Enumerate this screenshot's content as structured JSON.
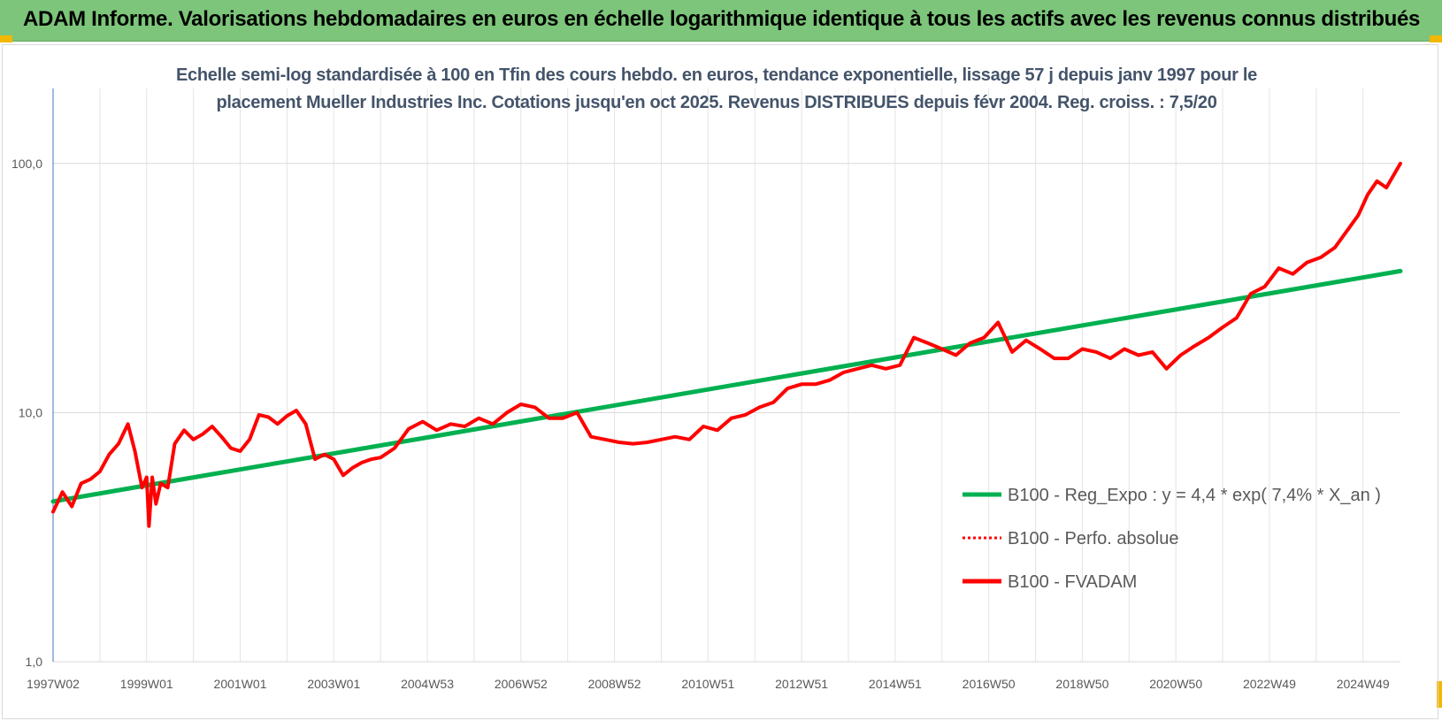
{
  "banner": {
    "title": "ADAM Informe. Valorisations hebdomadaires en euros en échelle logarithmique identique à tous les actifs avec les revenus connus distribués"
  },
  "chart_data": {
    "type": "line",
    "title_line1": "Echelle semi-log standardisée à 100 en Tfin des cours hebdo. en euros, tendance exponentielle, lissage 57 j depuis janv 1997 pour le",
    "title_line2": "placement Mueller Industries Inc. Cotations jusqu'en oct 2025. Revenus DISTRIBUES depuis févr 2004. Reg. croiss. : 7,5/20",
    "y_scale": "log",
    "ylim": [
      1,
      200
    ],
    "xlim": [
      1997.0,
      2025.8
    ],
    "y_ticks": [
      "1,0",
      "10,0",
      "100,0"
    ],
    "y_tick_values": [
      1,
      10,
      100
    ],
    "x_ticks": [
      "1997W02",
      "1999W01",
      "2001W01",
      "2003W01",
      "2004W53",
      "2006W52",
      "2008W52",
      "2010W51",
      "2012W51",
      "2014W51",
      "2016W50",
      "2018W50",
      "2020W50",
      "2022W49",
      "2024W49"
    ],
    "x_tick_years": [
      1997.0,
      1999.0,
      2001.0,
      2003.0,
      2005.0,
      2007.0,
      2009.0,
      2011.0,
      2013.0,
      2015.0,
      2017.0,
      2019.0,
      2021.0,
      2023.0,
      2025.0
    ],
    "grid": true,
    "legend_position": "right",
    "series": [
      {
        "name": "B100 - Reg_Expo : y = 4,4 * exp( 7,4% *  X_an )",
        "color": "#00b050",
        "style": "solid",
        "x": [
          1997.0,
          2025.8
        ],
        "y": [
          4.4,
          37.0
        ]
      },
      {
        "name": "B100 - Perfo. absolue",
        "color": "#ff0000",
        "style": "dotted",
        "x": [],
        "y": []
      },
      {
        "name": "B100 - FVADAM",
        "color": "#ff0000",
        "style": "solid",
        "x": [
          1997.0,
          1997.2,
          1997.4,
          1997.6,
          1997.8,
          1998.0,
          1998.2,
          1998.4,
          1998.6,
          1998.75,
          1998.9,
          1999.0,
          1999.05,
          1999.12,
          1999.2,
          1999.3,
          1999.45,
          1999.6,
          1999.8,
          2000.0,
          2000.2,
          2000.4,
          2000.6,
          2000.8,
          2001.0,
          2001.2,
          2001.4,
          2001.6,
          2001.8,
          2002.0,
          2002.2,
          2002.4,
          2002.6,
          2002.8,
          2003.0,
          2003.2,
          2003.4,
          2003.6,
          2003.8,
          2004.0,
          2004.3,
          2004.6,
          2004.9,
          2005.2,
          2005.5,
          2005.8,
          2006.1,
          2006.4,
          2006.7,
          2007.0,
          2007.3,
          2007.6,
          2007.9,
          2008.2,
          2008.5,
          2008.8,
          2009.1,
          2009.4,
          2009.7,
          2010.0,
          2010.3,
          2010.6,
          2010.9,
          2011.2,
          2011.5,
          2011.8,
          2012.1,
          2012.4,
          2012.7,
          2013.0,
          2013.3,
          2013.6,
          2013.9,
          2014.2,
          2014.5,
          2014.8,
          2015.1,
          2015.4,
          2015.7,
          2016.0,
          2016.3,
          2016.6,
          2016.9,
          2017.2,
          2017.5,
          2017.8,
          2018.1,
          2018.4,
          2018.7,
          2019.0,
          2019.3,
          2019.6,
          2019.9,
          2020.2,
          2020.5,
          2020.8,
          2021.1,
          2021.4,
          2021.7,
          2022.0,
          2022.3,
          2022.6,
          2022.9,
          2023.2,
          2023.5,
          2023.8,
          2024.1,
          2024.4,
          2024.7,
          2024.9,
          2025.1,
          2025.3,
          2025.5,
          2025.8
        ],
        "y": [
          4.0,
          4.8,
          4.2,
          5.2,
          5.4,
          5.8,
          6.8,
          7.5,
          9.0,
          7.0,
          5.0,
          5.5,
          3.5,
          5.5,
          4.3,
          5.2,
          5.0,
          7.5,
          8.5,
          7.8,
          8.2,
          8.8,
          8.0,
          7.2,
          7.0,
          7.8,
          9.8,
          9.6,
          9.0,
          9.7,
          10.2,
          9.0,
          6.5,
          6.8,
          6.5,
          5.6,
          6.0,
          6.3,
          6.5,
          6.6,
          7.2,
          8.6,
          9.2,
          8.5,
          9.0,
          8.8,
          9.5,
          9.0,
          10.0,
          10.8,
          10.5,
          9.5,
          9.5,
          10.0,
          8.0,
          7.8,
          7.6,
          7.5,
          7.6,
          7.8,
          8.0,
          7.8,
          8.8,
          8.5,
          9.5,
          9.8,
          10.5,
          11.0,
          12.5,
          13.0,
          13.0,
          13.5,
          14.5,
          15.0,
          15.5,
          15.0,
          15.5,
          20.0,
          19.0,
          18.0,
          17.0,
          19.0,
          20.0,
          23.0,
          17.5,
          19.5,
          18.0,
          16.5,
          16.5,
          18.0,
          17.5,
          16.5,
          18.0,
          17.0,
          17.5,
          15.0,
          17.0,
          18.5,
          20.0,
          22.0,
          24.0,
          30.0,
          32.0,
          38.0,
          36.0,
          40.0,
          42.0,
          46.0,
          55.0,
          62.0,
          75.0,
          85.0,
          80.0,
          100.0
        ]
      }
    ]
  }
}
